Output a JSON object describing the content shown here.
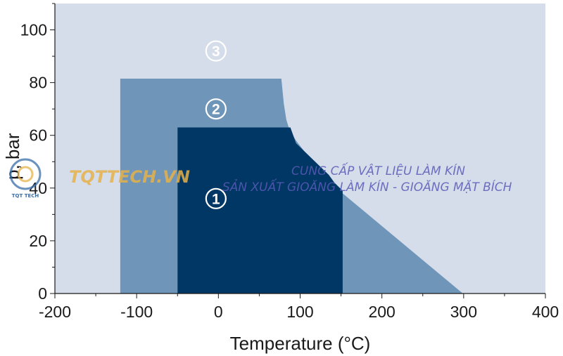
{
  "chart_data": {
    "type": "area",
    "title": "",
    "xlabel": "Temperature (°C)",
    "ylabel": "p, bar",
    "xlim": [
      -200,
      400
    ],
    "ylim": [
      0,
      110
    ],
    "x_ticks": [
      -200,
      -100,
      0,
      100,
      200,
      300,
      400
    ],
    "y_ticks": [
      0,
      20,
      40,
      60,
      80,
      100
    ],
    "grid": false,
    "legend": "none",
    "series": [
      {
        "label": "3",
        "color": "#d5dcea",
        "x": [
          -200,
          400,
          400,
          -200
        ],
        "y": [
          110,
          110,
          0,
          0
        ]
      },
      {
        "label": "2",
        "color": "#6f95b8",
        "x": [
          -120,
          77,
          80,
          83,
          87,
          95,
          105,
          150,
          299,
          -120
        ],
        "y": [
          81.5,
          81.5,
          72,
          66,
          62,
          58,
          54,
          38.5,
          0,
          0
        ]
      },
      {
        "label": "1",
        "color": "#003764",
        "x": [
          -50,
          88,
          95,
          105,
          115,
          125,
          135,
          142,
          152,
          152,
          -50
        ],
        "y": [
          63,
          63,
          57,
          54,
          51,
          48,
          45,
          42,
          39,
          0,
          0
        ]
      }
    ],
    "zone_labels": [
      {
        "text": "3",
        "x": -3,
        "y": 92,
        "fill": "none",
        "stroke": "#ffffff"
      },
      {
        "text": "2",
        "x": -3,
        "y": 70,
        "fill": "none",
        "stroke": "#ffffff"
      },
      {
        "text": "1",
        "x": -3,
        "y": 36,
        "fill": "none",
        "stroke": "#ffffff"
      }
    ]
  },
  "watermark": {
    "brand": "TQTTECH.VN",
    "logo_text": "TQT TECH",
    "line1": "CUNG CẤP VẬT LIỆU LÀM KÍN",
    "line2": "SẢN XUẤT GIOĂNG LÀM KÍN - GIOĂNG MẶT BÍCH"
  }
}
